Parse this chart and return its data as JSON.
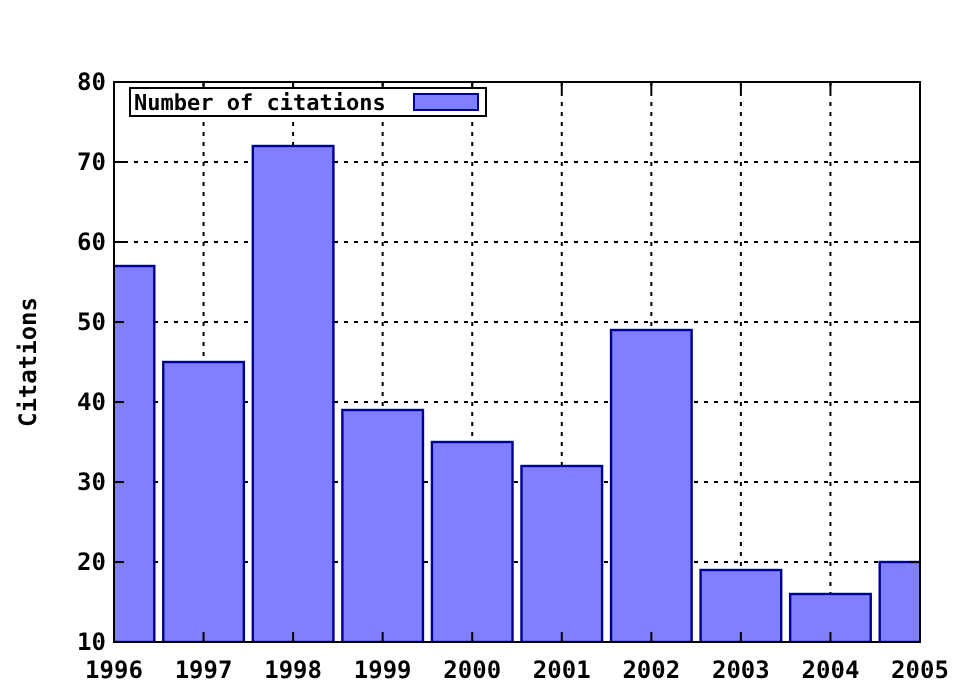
{
  "chart_data": {
    "type": "bar",
    "ylabel": "Citations",
    "x": [
      1996,
      1997,
      1998,
      1999,
      2000,
      2001,
      2002,
      2003,
      2004,
      2005
    ],
    "series": [
      {
        "name": "Number of citations",
        "color": "#8080ff",
        "values": [
          57,
          45,
          72,
          39,
          35,
          32,
          49,
          19,
          16,
          20
        ]
      }
    ],
    "xlim": [
      1996,
      2005
    ],
    "xticks": [
      1996,
      1997,
      1998,
      1999,
      2000,
      2001,
      2002,
      2003,
      2004,
      2005
    ],
    "ylim": [
      10,
      80
    ],
    "yticks": [
      10,
      20,
      30,
      40,
      50,
      60,
      70,
      80
    ],
    "grid": true,
    "legend": "top left"
  }
}
